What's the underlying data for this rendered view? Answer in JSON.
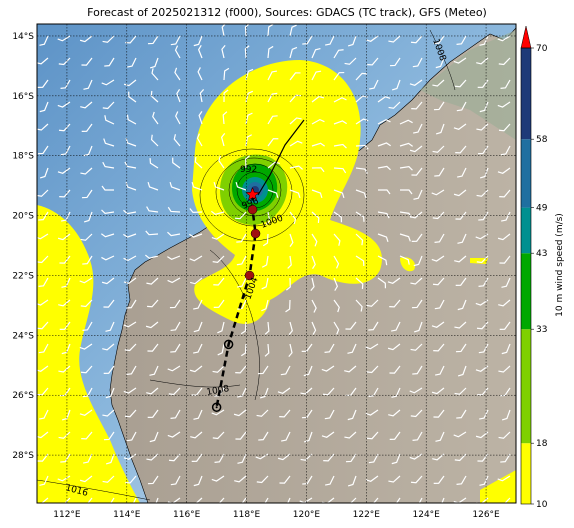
{
  "title": "Forecast of 2025021312 (f000), Sources: GDACS (TC track), GFS (Meteo)",
  "lon_ticks": [
    "112°E",
    "114°E",
    "116°E",
    "118°E",
    "120°E",
    "122°E",
    "124°E",
    "126°E"
  ],
  "lat_ticks": [
    "14°S",
    "16°S",
    "18°S",
    "20°S",
    "22°S",
    "24°S",
    "26°S",
    "28°S"
  ],
  "isobar_labels": [
    "992",
    "996",
    "1000",
    "1004",
    "1008",
    "1008",
    "1016"
  ],
  "colorbar": {
    "label": "10 m wind speed (m/s)",
    "ticks": [
      "10",
      "18",
      "33",
      "43",
      "49",
      "58",
      "70"
    ],
    "levels": [
      10,
      18,
      33,
      43,
      49,
      58,
      70
    ],
    "colors": [
      "#ffff00",
      "#7fd000",
      "#00a800",
      "#009090",
      "#1f6fa0",
      "#1e3a78",
      "#1a1a4a"
    ],
    "extend_color": "#ff0000"
  },
  "track_points": [
    {
      "lon": 118.2,
      "lat": -19.3,
      "marker": "star"
    },
    {
      "lon": 118.2,
      "lat": -19.8,
      "marker": "dot"
    },
    {
      "lon": 118.3,
      "lat": -20.6,
      "marker": "dot"
    },
    {
      "lon": 118.1,
      "lat": -22.0,
      "marker": "dot"
    },
    {
      "lon": 117.4,
      "lat": -24.3,
      "marker": "open"
    },
    {
      "lon": 117.0,
      "lat": -26.4,
      "marker": "open"
    }
  ],
  "map": {
    "lon_range": [
      111,
      127
    ],
    "lat_range": [
      -29.6,
      -13.6
    ],
    "ocean_color": "#6d9fcf",
    "land_color": "#b3a99a"
  }
}
